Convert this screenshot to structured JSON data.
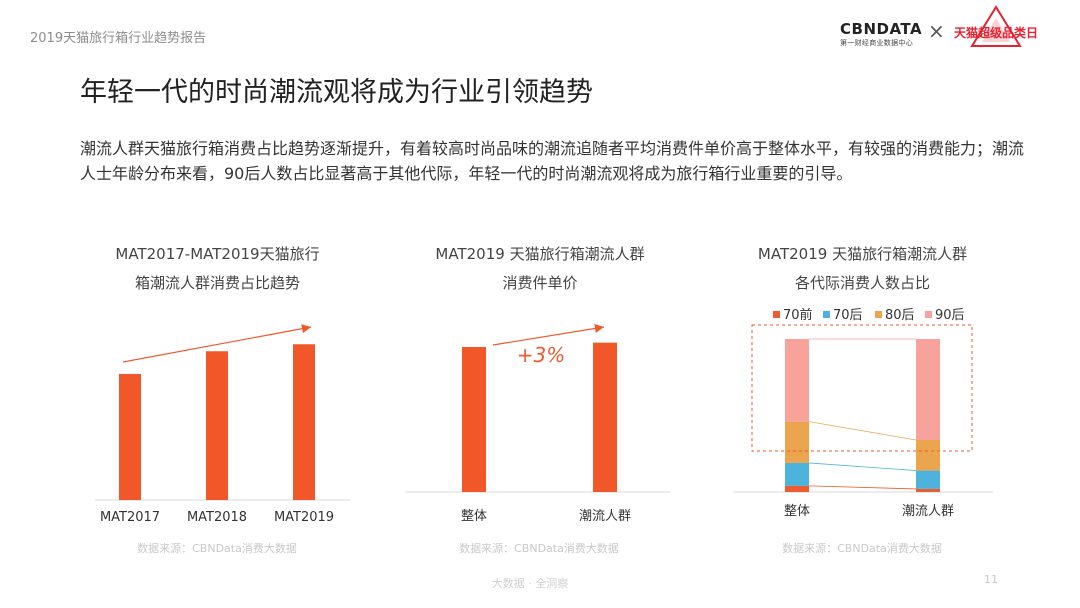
{
  "header": {
    "report_title": "2019天猫旅行箱行业趋势报告",
    "cbn_logo": "CBNDATA",
    "cbn_logo_sub": "第一财经商业数据中心",
    "cross": "×",
    "tmall_logo": "天猫超级品类日"
  },
  "page_title": "年轻一代的时尚潮流观将成为行业引领趋势",
  "intro": "潮流人群天猫旅行箱消费占比趋势逐渐提升，有着较高时尚品味的潮流追随者平均消费件单价高于整体水平，有较强的消费能力；潮流人士年龄分布来看，90后人数占比显著高于其他代际，年轻一代的时尚潮流观将成为旅行箱行业重要的引导。",
  "colors": {
    "bar": "#f2572a",
    "c70before": "#ee5b2c",
    "c70after": "#4db3dc",
    "c80after": "#eba54f",
    "c90after": "#f7a29a",
    "accent": "#e8202f"
  },
  "panels": [
    {
      "title_line1": "MAT2017-MAT2019天猫旅行",
      "title_line2": "箱潮流人群消费占比趋势",
      "source": "数据来源：CBNData消费大数据"
    },
    {
      "title_line1": "MAT2019 天猫旅行箱潮流人群",
      "title_line2": "消费件单价",
      "source": "数据来源：CBNData消费大数据"
    },
    {
      "title_line1": "MAT2019 天猫旅行箱潮流人群",
      "title_line2": "各代际消费人数占比",
      "source": "数据来源：CBNData消费大数据"
    }
  ],
  "chart_data": [
    {
      "type": "bar",
      "categories": [
        "MAT2017",
        "MAT2018",
        "MAT2019"
      ],
      "values": [
        0.72,
        0.85,
        0.89
      ],
      "value_unit": "relative (no axis printed)",
      "trend_arrow": "up"
    },
    {
      "type": "bar",
      "categories": [
        "整体",
        "潮流人群"
      ],
      "values": [
        1.0,
        1.03
      ],
      "value_unit": "relative (no axis printed)",
      "annotation": "+3%",
      "trend_arrow": "up"
    },
    {
      "type": "bar",
      "stacked": true,
      "stack_mode": "percent",
      "categories": [
        "整体",
        "潮流人群"
      ],
      "series": [
        {
          "name": "70前",
          "color": "#ee5b2c",
          "values": [
            4,
            2
          ]
        },
        {
          "name": "70后",
          "color": "#4db3dc",
          "values": [
            15,
            12
          ]
        },
        {
          "name": "80后",
          "color": "#eba54f",
          "values": [
            27,
            20
          ]
        },
        {
          "name": "90后",
          "color": "#f7a29a",
          "values": [
            54,
            66
          ]
        }
      ],
      "legend_position": "top",
      "highlight": "90后 dashed box"
    }
  ],
  "footer": {
    "text": "大数据 · 全洞察",
    "page_number": "11"
  }
}
